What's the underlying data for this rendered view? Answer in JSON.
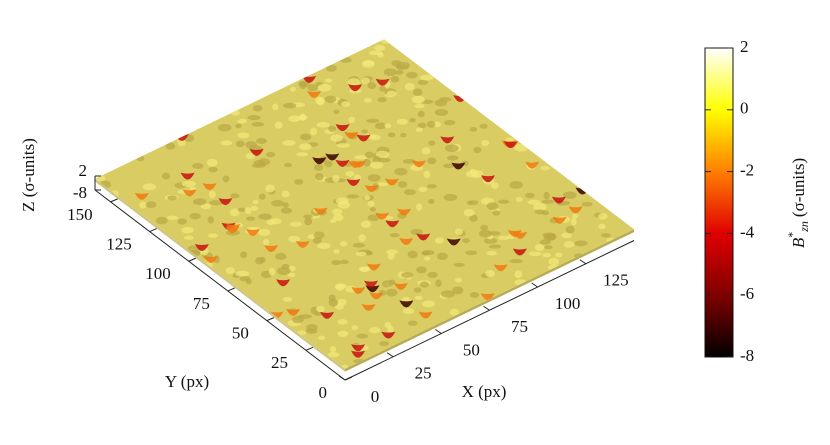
{
  "chart_data": {
    "type": "surface3d",
    "xlabel": "X (px)",
    "ylabel": "Y (px)",
    "zlabel": "Z (σ-units)",
    "xlim": [
      0,
      150
    ],
    "xticks": [
      0,
      25,
      50,
      75,
      100,
      125
    ],
    "ylim": [
      0,
      160
    ],
    "yticks": [
      0,
      25,
      50,
      75,
      100,
      125,
      150
    ],
    "zlim": [
      -8,
      2
    ],
    "zticks": [
      -8,
      2
    ],
    "colorbar": {
      "label": {
        "symbol": "B",
        "sup": "*",
        "sub": "zn",
        "unit": "(σ-units)"
      },
      "lim": [
        -8,
        2
      ],
      "ticks": [
        -8,
        -6,
        -4,
        -2,
        0,
        2
      ],
      "colormap": [
        "#000000",
        "#800000",
        "#e00000",
        "#ff7f00",
        "#ffff00",
        "#ffffff"
      ]
    }
  }
}
